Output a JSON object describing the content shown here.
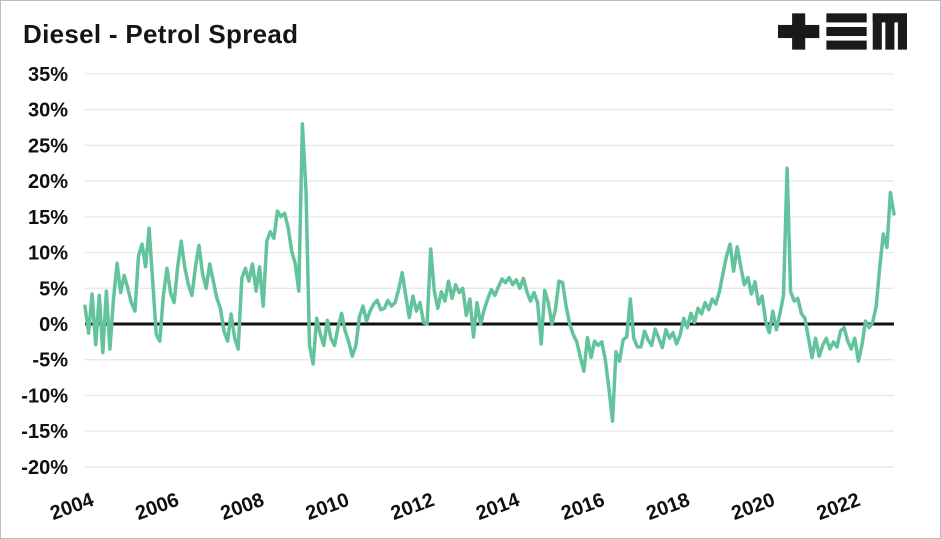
{
  "header": {
    "logo_icon": "plus-equals-m-logo"
  },
  "chart_data": {
    "type": "line",
    "title": "Diesel - Petrol Spread",
    "xlabel": "",
    "ylabel": "",
    "unit": "%",
    "frequency": "monthly",
    "x_start_year": 2004,
    "x_end_year": 2022,
    "x_labels": [
      "2004",
      "2006",
      "2008",
      "2010",
      "2012",
      "2014",
      "2016",
      "2018",
      "2020",
      "2022"
    ],
    "ytick_labels": [
      "35%",
      "30%",
      "25%",
      "20%",
      "15%",
      "10%",
      "5%",
      "0%",
      "-5%",
      "-10%",
      "-15%",
      "-20%"
    ],
    "yticks": [
      35,
      30,
      25,
      20,
      15,
      10,
      5,
      0,
      -5,
      -10,
      -15,
      -20
    ],
    "ylim": [
      -20,
      35
    ],
    "grid": true,
    "legend": false,
    "zero_baseline": true,
    "line_color": "#63c39c",
    "zero_line_color": "#111111",
    "grid_color": "#e6e6e6",
    "text_color": "#101010",
    "series": [
      {
        "name": "Diesel - Petrol spread",
        "values": [
          2.5,
          -1.3,
          4.2,
          -2.9,
          4.0,
          -4.0,
          4.6,
          -3.5,
          3.5,
          8.5,
          4.4,
          6.8,
          5.0,
          3.0,
          1.8,
          9.5,
          11.2,
          8.0,
          13.4,
          6.0,
          -1.5,
          -2.4,
          4.0,
          7.8,
          4.4,
          3.0,
          8.0,
          11.6,
          7.9,
          5.5,
          4.0,
          8.0,
          11.0,
          7.0,
          5.0,
          8.4,
          6.0,
          3.6,
          2.2,
          -1.0,
          -2.4,
          1.4,
          -2.0,
          -3.5,
          6.4,
          7.8,
          6.0,
          8.4,
          4.6,
          8.0,
          2.5,
          11.6,
          12.9,
          12.0,
          15.8,
          15.0,
          15.5,
          13.5,
          10.2,
          8.4,
          4.6,
          28.0,
          18.6,
          -3.0,
          -5.6,
          0.8,
          -1.4,
          -3.0,
          0.5,
          -2.0,
          -3.0,
          -0.5,
          1.5,
          -1.0,
          -2.5,
          -4.5,
          -3.0,
          1.0,
          2.5,
          0.4,
          1.8,
          2.8,
          3.3,
          2.0,
          2.2,
          3.3,
          2.5,
          3.0,
          4.8,
          7.2,
          4.0,
          0.9,
          3.9,
          1.8,
          3.0,
          0.2,
          0.0,
          10.5,
          4.6,
          2.2,
          4.5,
          3.2,
          6.0,
          3.6,
          5.5,
          4.4,
          5.0,
          1.2,
          3.5,
          -1.8,
          3.0,
          0.0,
          2.0,
          3.5,
          4.8,
          4.0,
          5.2,
          6.3,
          5.8,
          6.5,
          5.5,
          6.2,
          5.0,
          6.4,
          4.5,
          3.2,
          4.4,
          3.0,
          -2.8,
          4.7,
          3.0,
          0.0,
          2.0,
          6.0,
          5.8,
          2.5,
          0.0,
          -1.5,
          -2.5,
          -4.7,
          -6.6,
          -1.9,
          -4.7,
          -2.4,
          -3.0,
          -2.5,
          -5.0,
          -9.0,
          -13.6,
          -3.9,
          -5.2,
          -2.2,
          -1.8,
          3.5,
          -2.0,
          -3.2,
          -3.2,
          -1.0,
          -2.2,
          -3.0,
          -0.7,
          -2.0,
          -3.3,
          -0.8,
          -2.0,
          -1.2,
          -2.8,
          -1.5,
          0.8,
          -0.5,
          1.5,
          0.2,
          2.2,
          1.4,
          3.0,
          2.0,
          3.5,
          2.8,
          4.5,
          7.0,
          9.5,
          11.2,
          7.4,
          10.8,
          8.0,
          5.5,
          6.5,
          4.2,
          5.9,
          2.8,
          3.9,
          0.3,
          -1.2,
          1.8,
          -0.8,
          1.5,
          4.0,
          21.8,
          4.5,
          3.2,
          3.6,
          1.5,
          0.8,
          -2.0,
          -4.7,
          -2.0,
          -4.5,
          -3.0,
          -2.0,
          -3.5,
          -2.5,
          -3.2,
          -1.0,
          -0.5,
          -2.4,
          -3.5,
          -2.0,
          -5.2,
          -3.0,
          0.4,
          -0.5,
          0.2,
          2.5,
          7.9,
          12.6,
          10.7,
          18.4,
          15.4
        ]
      }
    ]
  }
}
